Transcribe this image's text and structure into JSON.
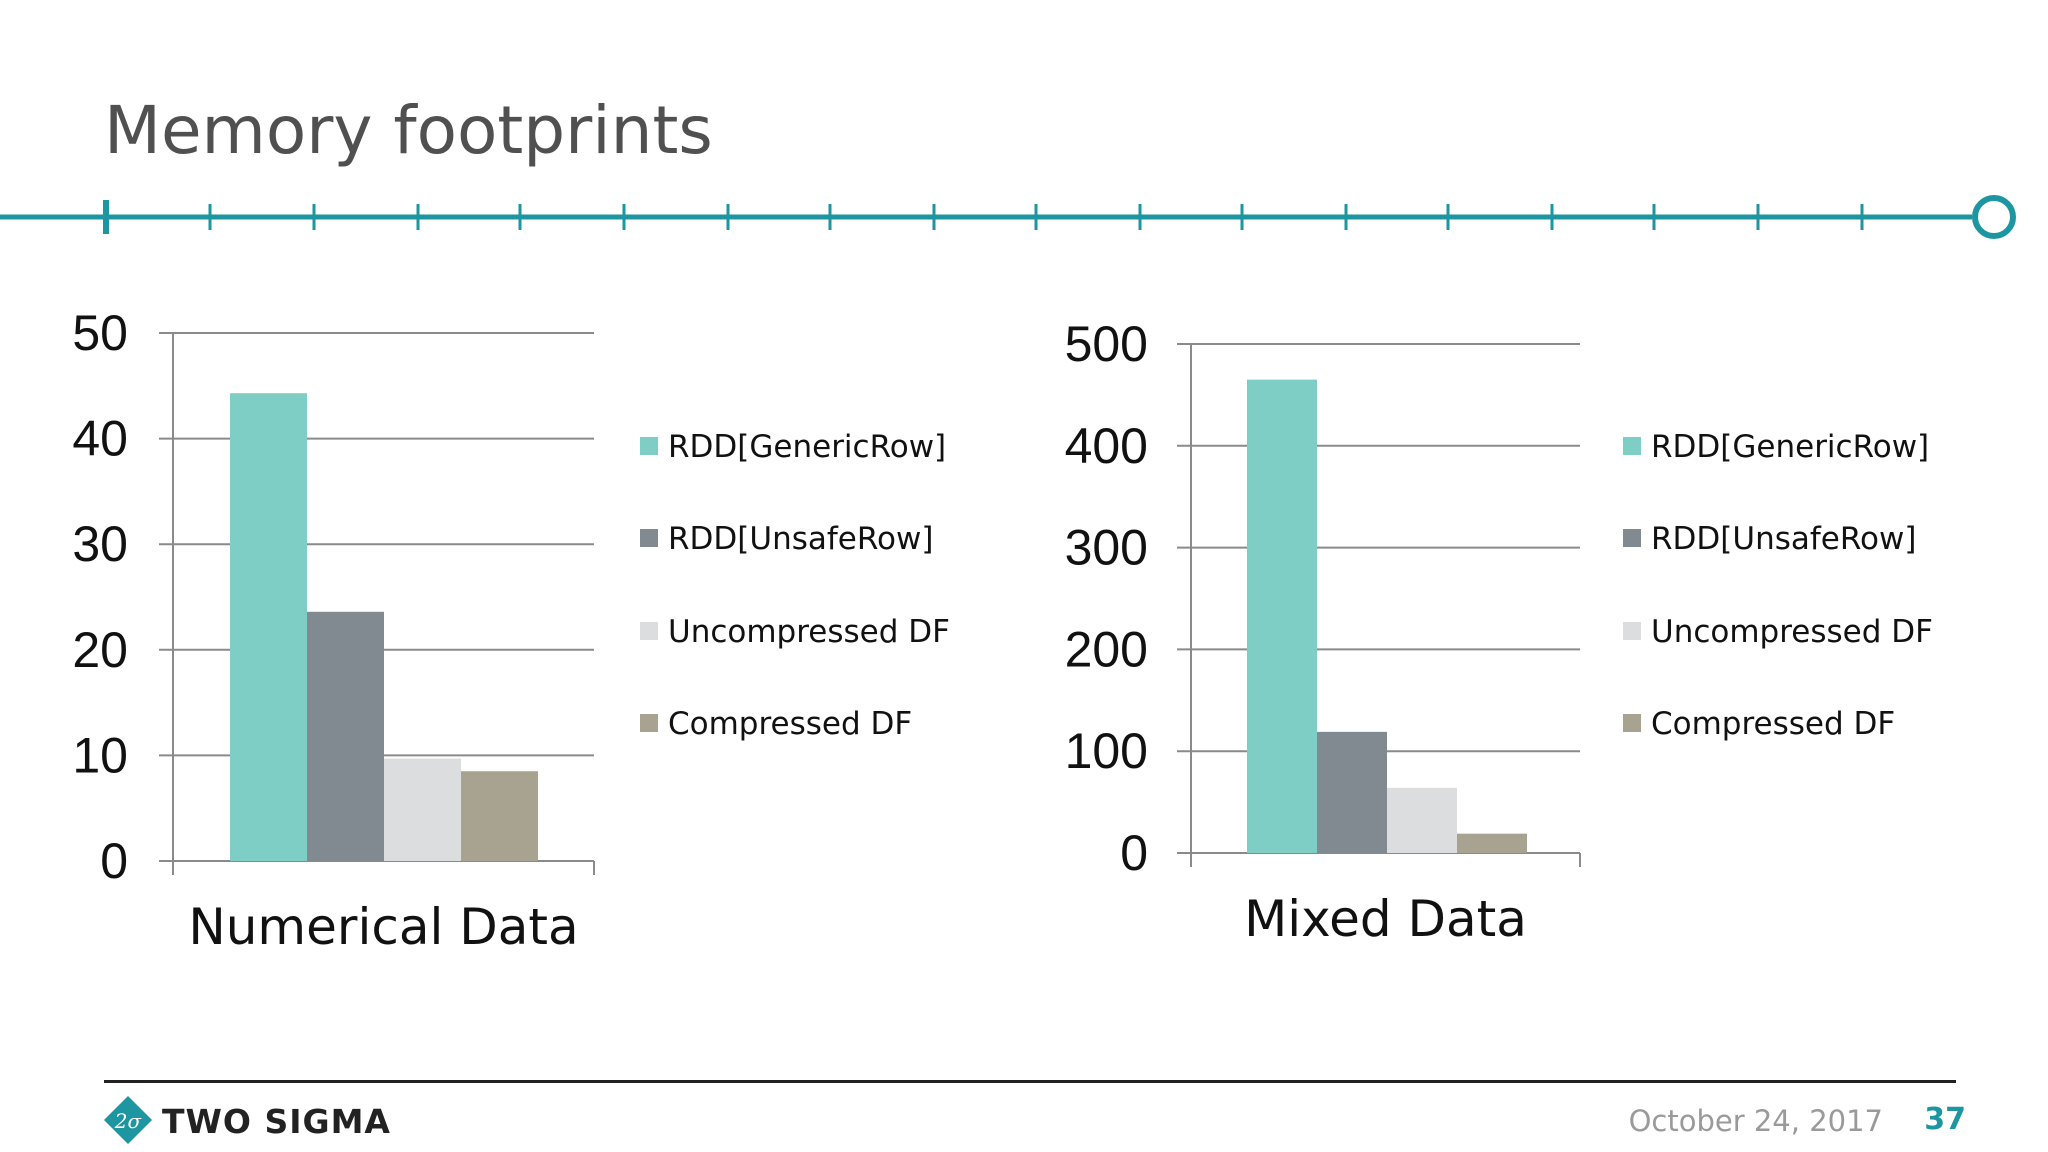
{
  "slide": {
    "title": "Memory footprints",
    "accent_color": "#1e96a1",
    "footer": {
      "brand": "TWO SIGMA",
      "date": "October 24, 2017",
      "page_number": "37",
      "logo_text": "2σ"
    }
  },
  "chart_data": [
    {
      "type": "bar",
      "categories": [
        "Numerical Data"
      ],
      "series": [
        {
          "name": "RDD[GenericRow]",
          "values": [
            44.3
          ],
          "color": "#7ecec6"
        },
        {
          "name": "RDD[UnsafeRow]",
          "values": [
            23.6
          ],
          "color": "#818a91"
        },
        {
          "name": "Uncompressed DF",
          "values": [
            9.7
          ],
          "color": "#dcdddf"
        },
        {
          "name": "Compressed DF",
          "values": [
            8.5
          ],
          "color": "#a8a391"
        }
      ],
      "title": "",
      "xlabel": "",
      "ylabel": "",
      "ylim": [
        0,
        50
      ],
      "yticks": [
        "0",
        "10",
        "20",
        "30",
        "40",
        "50"
      ],
      "grid": true,
      "legend": "right"
    },
    {
      "type": "bar",
      "categories": [
        "Mixed Data"
      ],
      "series": [
        {
          "name": "RDD[GenericRow]",
          "values": [
            465
          ],
          "color": "#7ecec6"
        },
        {
          "name": "RDD[UnsafeRow]",
          "values": [
            119
          ],
          "color": "#818a91"
        },
        {
          "name": "Uncompressed DF",
          "values": [
            64
          ],
          "color": "#dcdddf"
        },
        {
          "name": "Compressed DF",
          "values": [
            19
          ],
          "color": "#a8a391"
        }
      ],
      "title": "",
      "xlabel": "",
      "ylabel": "",
      "ylim": [
        0,
        500
      ],
      "yticks": [
        "0",
        "100",
        "200",
        "300",
        "400",
        "500"
      ],
      "grid": true,
      "legend": "right"
    }
  ]
}
